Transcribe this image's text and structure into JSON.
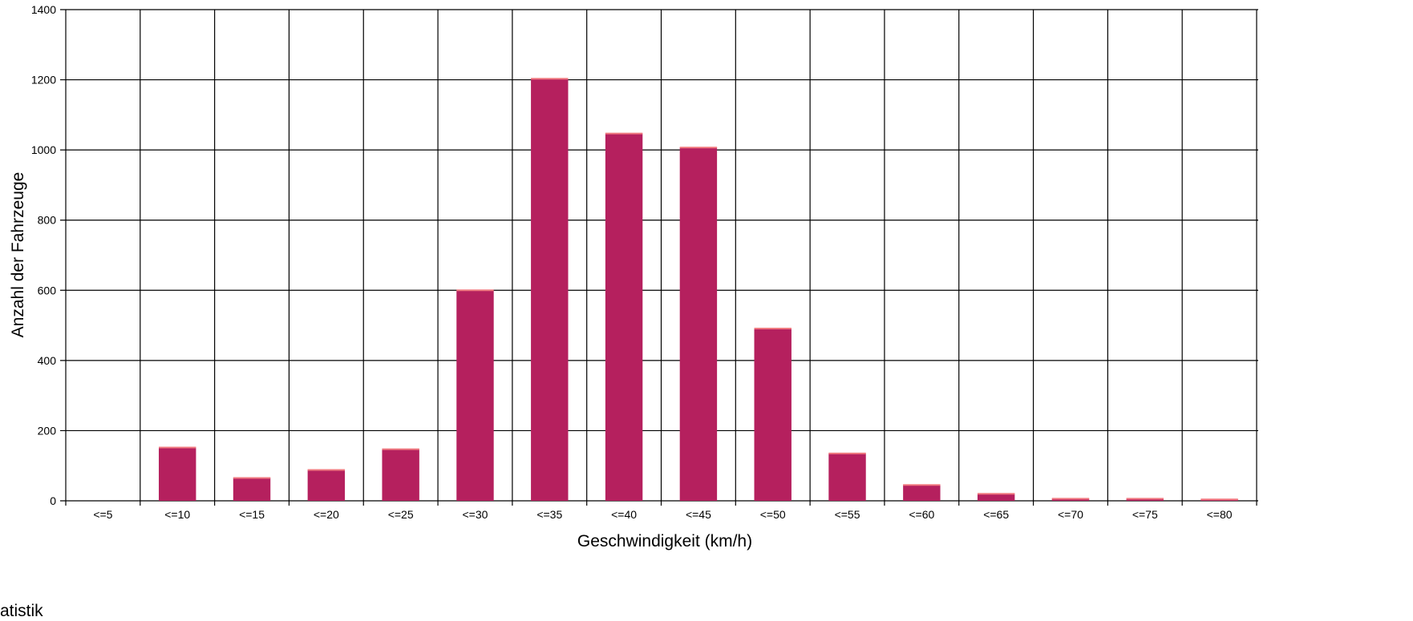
{
  "footer": {
    "text": "atistik"
  },
  "chart_data": {
    "type": "bar",
    "xlabel": "Geschwindigkeit (km/h)",
    "ylabel": "Anzahl der Fahrzeuge",
    "categories": [
      "<=5",
      "<=10",
      "<=15",
      "<=20",
      "<=25",
      "<=30",
      "<=35",
      "<=40",
      "<=45",
      "<=50",
      "<=55",
      "<=60",
      "<=65",
      "<=70",
      "<=75",
      "<=80"
    ],
    "values": [
      0,
      152,
      65,
      88,
      147,
      600,
      1203,
      1047,
      1007,
      491,
      135,
      45,
      20,
      6,
      6,
      4
    ],
    "ylim": [
      0,
      1400
    ],
    "yticks": [
      0,
      200,
      400,
      600,
      800,
      1000,
      1200,
      1400
    ],
    "grid": true,
    "legend": "none",
    "bar_color": "#b5205e",
    "bar_edge_color": "#f07a80"
  }
}
